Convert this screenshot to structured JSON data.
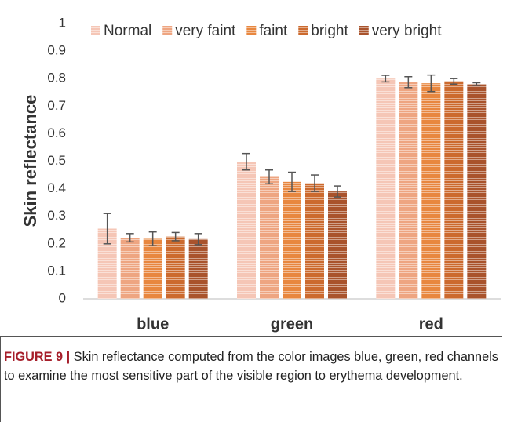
{
  "chart_data": {
    "type": "bar",
    "ylabel": "Skin reflectance",
    "caption_label": "FIGURE 9 |",
    "caption": "Skin reflectance computed from the color images blue, green, red channels to examine the most sensitive part of the visible region to erythema development.",
    "categories": [
      "blue",
      "green",
      "red"
    ],
    "series": [
      {
        "name": "Normal",
        "color": "#f5c6b6",
        "values": [
          0.255,
          0.498,
          0.8
        ],
        "errors": [
          0.055,
          0.03,
          0.012
        ]
      },
      {
        "name": "very faint",
        "color": "#eea581",
        "values": [
          0.222,
          0.443,
          0.787
        ],
        "errors": [
          0.015,
          0.025,
          0.02
        ]
      },
      {
        "name": "faint",
        "color": "#e8873f",
        "values": [
          0.218,
          0.425,
          0.783
        ],
        "errors": [
          0.025,
          0.035,
          0.03
        ]
      },
      {
        "name": "bright",
        "color": "#cc6a2e",
        "values": [
          0.226,
          0.42,
          0.79
        ],
        "errors": [
          0.015,
          0.03,
          0.01
        ]
      },
      {
        "name": "very bright",
        "color": "#a9532c",
        "values": [
          0.217,
          0.39,
          0.78
        ],
        "errors": [
          0.02,
          0.02,
          0.005
        ]
      }
    ],
    "ylim": [
      0,
      1
    ],
    "yticks": [
      0,
      0.1,
      0.2,
      0.3,
      0.4,
      0.5,
      0.6,
      0.7,
      0.8,
      0.9,
      1
    ],
    "error_color": "#555555"
  }
}
